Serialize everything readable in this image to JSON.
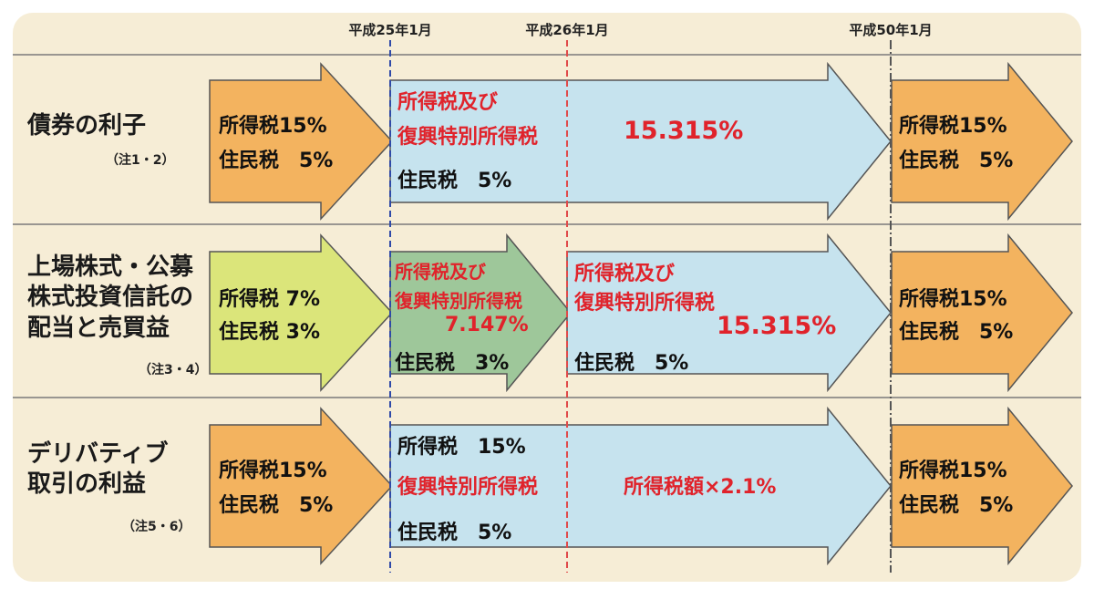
{
  "dates": [
    "平成25年1月",
    "平成26年1月",
    "平成50年1月"
  ],
  "rows": [
    {
      "title": [
        "債券の利子"
      ],
      "note": "（注1・2）",
      "before": {
        "income_tax": "所得税15%",
        "resident_tax": "住民税　5%"
      },
      "period": {
        "label_line1": "所得税及び",
        "label_line2": "復興特別所得税",
        "rate": "15.315%",
        "resident_tax": "住民税　5%"
      },
      "after": {
        "income_tax": "所得税15%",
        "resident_tax": "住民税　5%"
      }
    },
    {
      "title": [
        "上場株式・公募",
        "株式投資信託の",
        "配当と売買益"
      ],
      "note": "（注3・4）",
      "before": {
        "income_tax": "所得税 7%",
        "resident_tax": "住民税 3%"
      },
      "period1": {
        "label_line1": "所得税及び",
        "label_line2": "復興特別所得税",
        "rate": "7.147%",
        "resident_tax": "住民税　3%"
      },
      "period2": {
        "label_line1": "所得税及び",
        "label_line2": "復興特別所得税",
        "rate": "15.315%",
        "resident_tax": "住民税　5%"
      },
      "after": {
        "income_tax": "所得税15%",
        "resident_tax": "住民税　5%"
      }
    },
    {
      "title": [
        "デリバティブ",
        "取引の利益"
      ],
      "note": "（注5・6）",
      "before": {
        "income_tax": "所得税15%",
        "resident_tax": "住民税　5%"
      },
      "period": {
        "income_tax": "所得税　15%",
        "reconstruction_label": "復興特別所得税",
        "reconstruction_rate": "所得税額×2.1%",
        "resident_tax": "住民税　5%"
      },
      "after": {
        "income_tax": "所得税15%",
        "resident_tax": "住民税　5%"
      }
    }
  ],
  "colors": {
    "orange_arrow": "#f3b35f",
    "green_arrow": "#dbe57a",
    "dark_green_arrow": "#9ec79a",
    "blue_arrow": "#c6e3ee",
    "red_text": "#e0232b",
    "blue_dash": "#2f4aa8",
    "red_dash": "#e04a4a",
    "gray_dash": "#555555",
    "panel": "#f6edd6"
  }
}
